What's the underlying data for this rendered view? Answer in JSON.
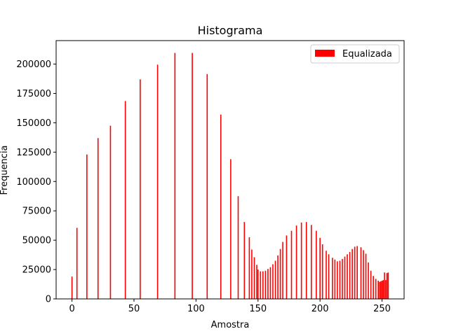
{
  "chart_data": {
    "type": "bar",
    "title": "Histograma",
    "xlabel": "Amostra",
    "ylabel": "Frequencia",
    "xlim": [
      -12.8,
      267.8
    ],
    "ylim": [
      0,
      220000
    ],
    "xticks": [
      0,
      50,
      100,
      150,
      200,
      250
    ],
    "yticks": [
      0,
      25000,
      50000,
      75000,
      100000,
      125000,
      150000,
      175000,
      200000
    ],
    "grid": false,
    "legend": {
      "position": "top-right"
    },
    "series": [
      {
        "name": "Equalizada",
        "color": "#ff0000",
        "x": [
          0,
          4,
          12,
          21,
          31,
          43,
          55,
          69,
          83,
          97,
          109,
          120,
          128,
          134,
          139,
          143,
          145,
          147,
          149,
          150,
          152,
          154,
          156,
          158,
          160,
          162,
          164,
          166,
          168,
          170,
          173,
          177,
          181,
          185,
          189,
          193,
          197,
          200,
          202,
          205,
          207,
          210,
          212,
          214,
          216,
          218,
          220,
          222,
          224,
          226,
          228,
          230,
          233,
          235,
          237,
          239,
          241,
          243,
          245,
          247,
          248,
          249,
          250,
          251,
          252,
          253,
          254,
          255
        ],
        "values": [
          19000,
          60500,
          123000,
          137000,
          147500,
          168500,
          187000,
          199500,
          209500,
          209500,
          191500,
          157000,
          119000,
          87500,
          65500,
          52500,
          42000,
          35500,
          29000,
          25000,
          23500,
          23500,
          24000,
          25500,
          27000,
          29500,
          32500,
          37000,
          42500,
          48500,
          54000,
          58000,
          62500,
          65000,
          65500,
          63000,
          58000,
          52000,
          46500,
          41000,
          38000,
          35000,
          33500,
          32000,
          32500,
          34000,
          36000,
          38000,
          40000,
          42500,
          44500,
          45000,
          44000,
          41500,
          38500,
          31000,
          24000,
          19500,
          17000,
          15500,
          14500,
          15000,
          15500,
          16000,
          22500,
          16000,
          22000,
          22500
        ]
      }
    ]
  }
}
